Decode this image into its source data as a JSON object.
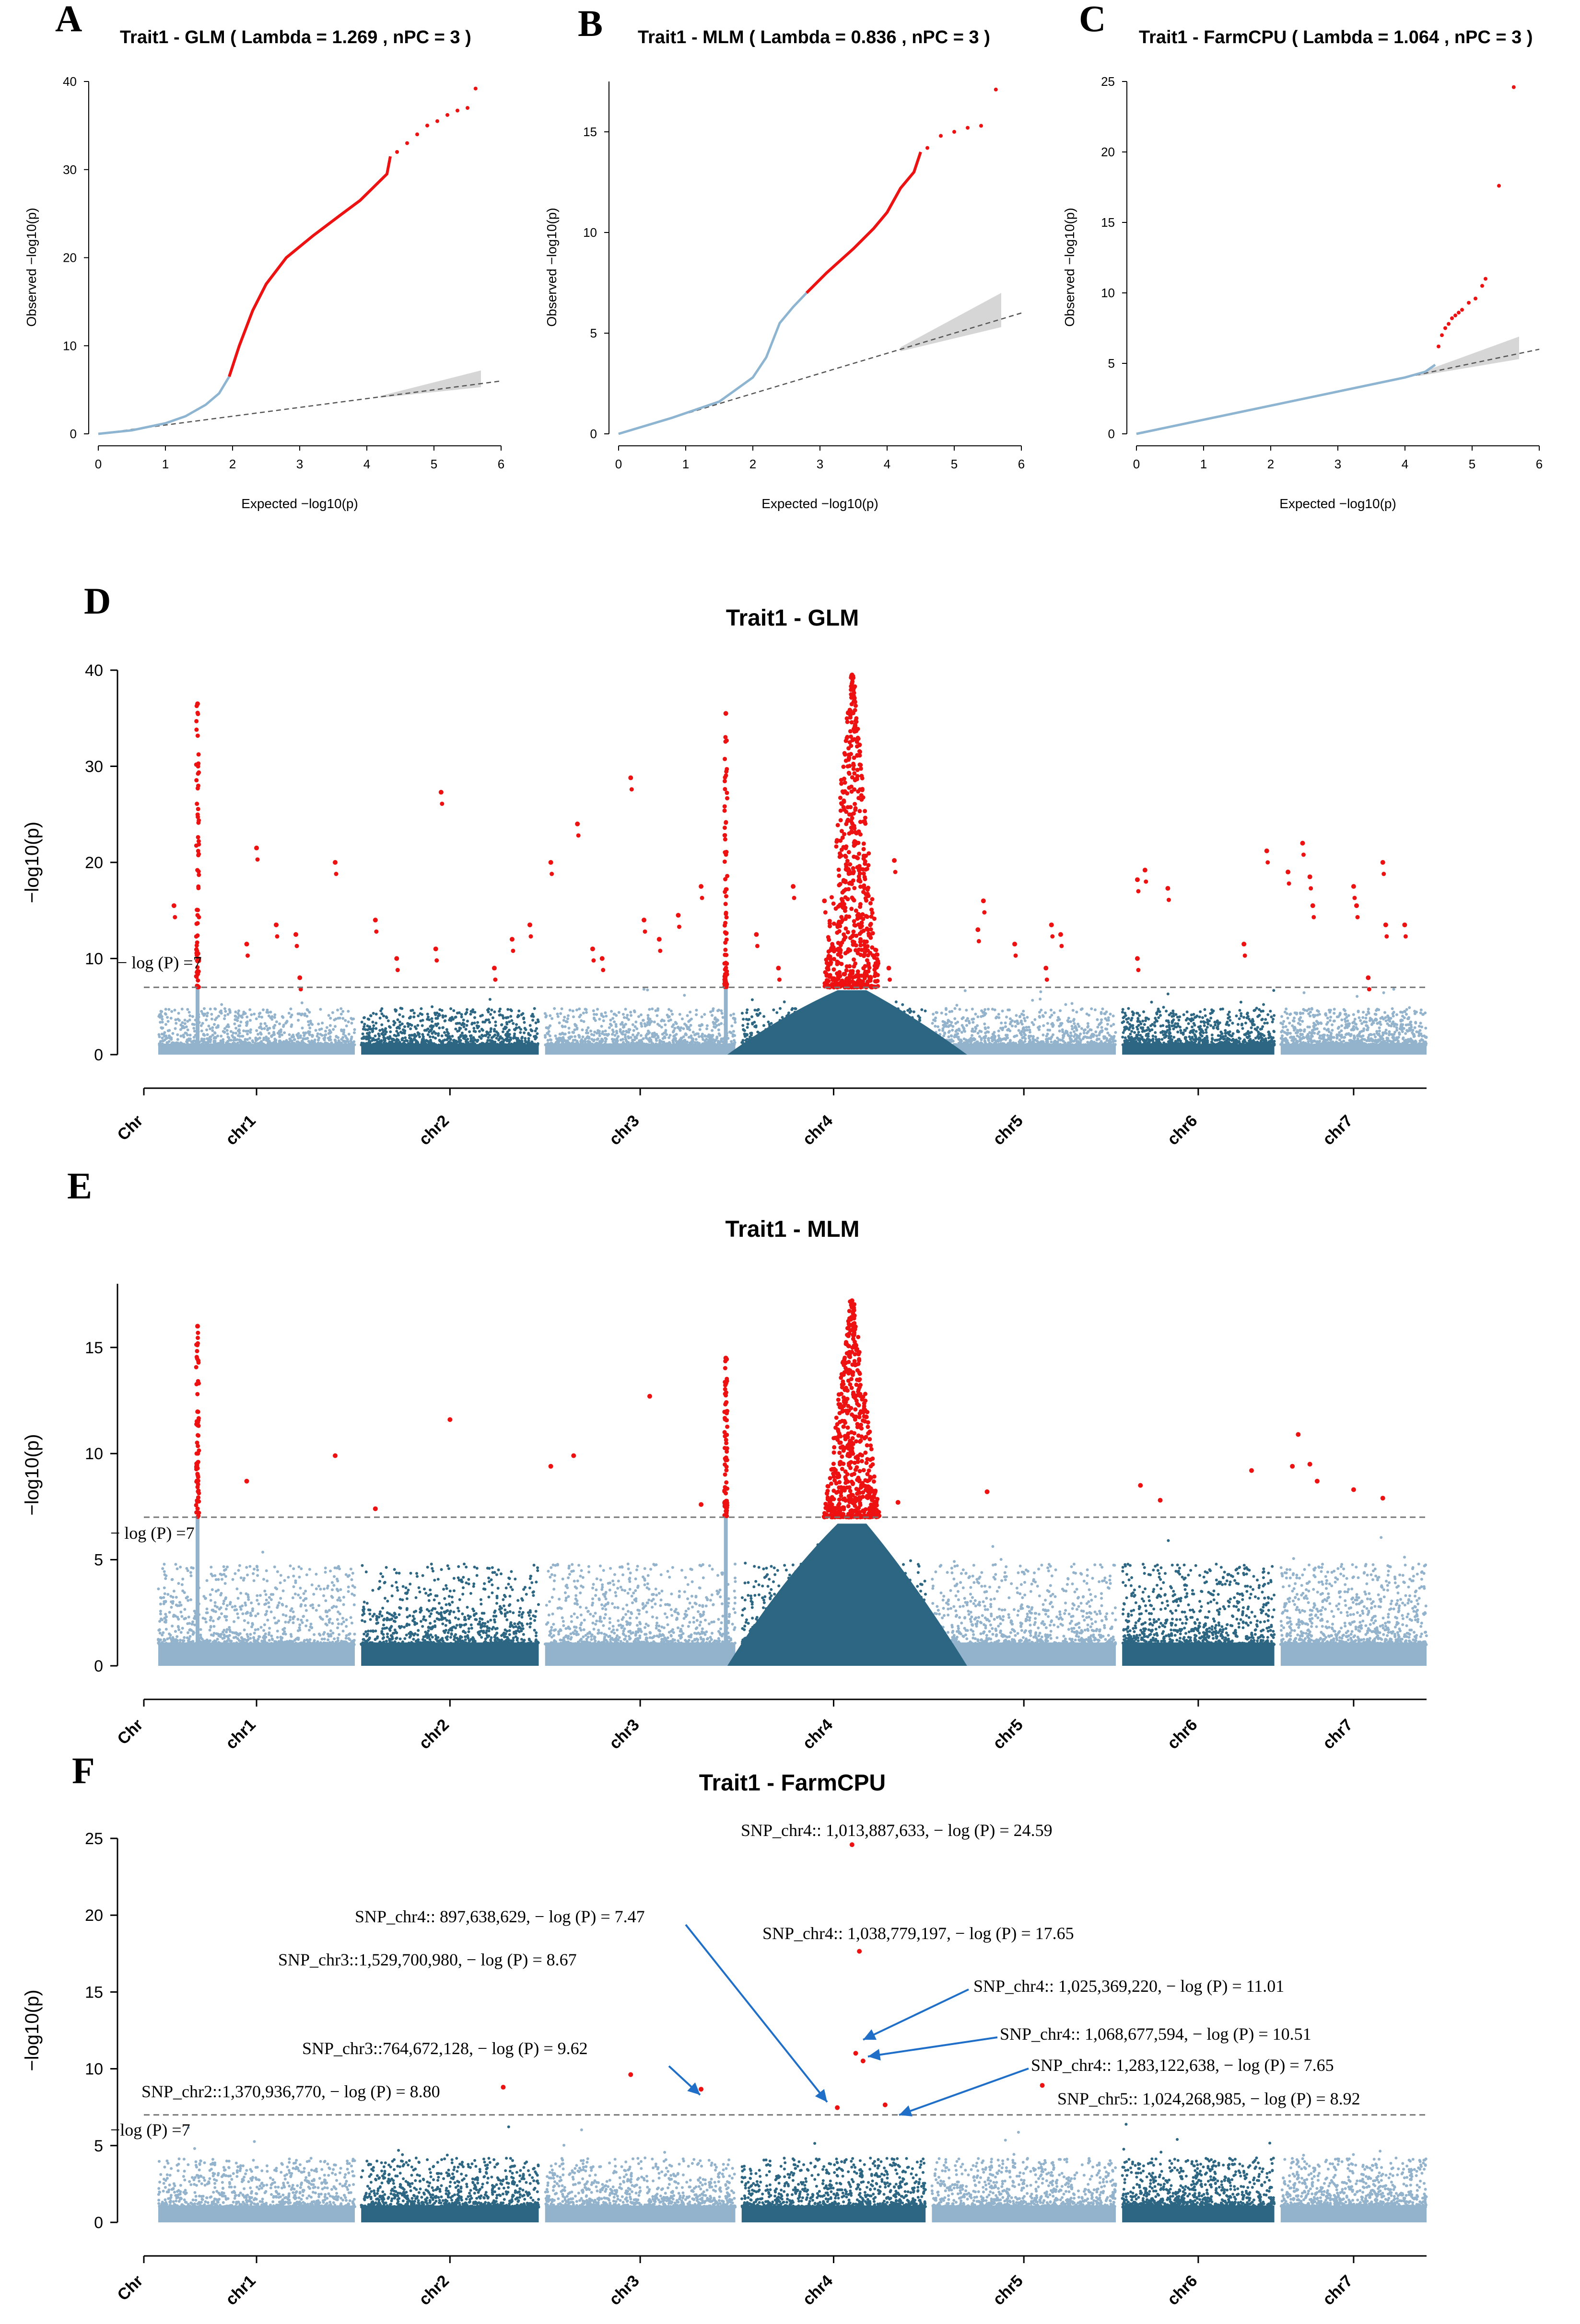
{
  "chart_data": [
    {
      "id": "A",
      "panel_label": "A",
      "type": "scatter",
      "title": "Trait1 - GLM ( Lambda = 1.269 , nPC = 3 )",
      "xlabel": "Expected  −log10(p)",
      "ylabel": "Observed  −log10(p)",
      "xlim": [
        0,
        6
      ],
      "ylim": [
        0,
        40
      ],
      "xticks": [
        "0",
        "1",
        "2",
        "3",
        "4",
        "5",
        "6"
      ],
      "yticks": [
        "0",
        "10",
        "20",
        "30",
        "40"
      ],
      "blue_curve": [
        [
          0,
          0
        ],
        [
          0.5,
          0.4
        ],
        [
          1,
          1.2
        ],
        [
          1.3,
          2
        ],
        [
          1.6,
          3.3
        ],
        [
          1.8,
          4.6
        ],
        [
          1.95,
          6.5
        ]
      ],
      "red_curve": [
        [
          1.95,
          6.5
        ],
        [
          2.1,
          10
        ],
        [
          2.3,
          14
        ],
        [
          2.5,
          17
        ],
        [
          2.8,
          20
        ],
        [
          3.2,
          22.5
        ],
        [
          3.6,
          24.8
        ],
        [
          3.9,
          26.5
        ],
        [
          4.1,
          28
        ],
        [
          4.3,
          29.5
        ],
        [
          4.35,
          31.5
        ]
      ],
      "red_tail": [
        [
          4.45,
          32
        ],
        [
          4.6,
          33
        ],
        [
          4.75,
          34
        ],
        [
          4.9,
          35
        ],
        [
          5.05,
          35.5
        ],
        [
          5.2,
          36.2
        ],
        [
          5.35,
          36.7
        ],
        [
          5.5,
          37
        ],
        [
          5.62,
          39.2
        ]
      ],
      "ci_upper_end": 7.2
    },
    {
      "id": "B",
      "panel_label": "B",
      "type": "scatter",
      "title": "Trait1 - MLM ( Lambda = 0.836 , nPC = 3 )",
      "xlabel": "Expected  −log10(p)",
      "ylabel": "Observed  −log10(p)",
      "xlim": [
        0,
        6
      ],
      "ylim": [
        0,
        17.5
      ],
      "xticks": [
        "0",
        "1",
        "2",
        "3",
        "4",
        "5",
        "6"
      ],
      "yticks": [
        "0",
        "5",
        "10",
        "15"
      ],
      "blue_curve": [
        [
          0,
          0
        ],
        [
          0.8,
          0.8
        ],
        [
          1.5,
          1.6
        ],
        [
          2,
          2.8
        ],
        [
          2.2,
          3.8
        ],
        [
          2.4,
          5.5
        ],
        [
          2.6,
          6.3
        ],
        [
          2.8,
          7
        ]
      ],
      "red_curve": [
        [
          2.8,
          7
        ],
        [
          3.1,
          8
        ],
        [
          3.5,
          9.2
        ],
        [
          3.8,
          10.2
        ],
        [
          4,
          11
        ],
        [
          4.2,
          12.2
        ],
        [
          4.4,
          13
        ],
        [
          4.5,
          14
        ]
      ],
      "red_tail": [
        [
          4.6,
          14.2
        ],
        [
          4.8,
          14.8
        ],
        [
          5,
          15
        ],
        [
          5.2,
          15.2
        ],
        [
          5.4,
          15.3
        ],
        [
          5.62,
          17.1
        ]
      ],
      "ci_upper_end": 7.0
    },
    {
      "id": "C",
      "panel_label": "C",
      "type": "scatter",
      "title": "Trait1 - FarmCPU ( Lambda = 1.064 , nPC = 3 )",
      "xlabel": "Expected  −log10(p)",
      "ylabel": "Observed  −log10(p)",
      "xlim": [
        0,
        6
      ],
      "ylim": [
        0,
        25
      ],
      "xticks": [
        "0",
        "1",
        "2",
        "3",
        "4",
        "5",
        "6"
      ],
      "yticks": [
        "0",
        "5",
        "10",
        "15",
        "20",
        "25"
      ],
      "blue_curve": [
        [
          0,
          0
        ],
        [
          1,
          1
        ],
        [
          2,
          2
        ],
        [
          3,
          3
        ],
        [
          4,
          4
        ],
        [
          4.3,
          4.4
        ],
        [
          4.45,
          4.9
        ]
      ],
      "red_points": [
        [
          4.5,
          6.2
        ],
        [
          4.55,
          7.0
        ],
        [
          4.6,
          7.5
        ],
        [
          4.65,
          7.8
        ],
        [
          4.7,
          8.2
        ],
        [
          4.75,
          8.4
        ],
        [
          4.8,
          8.6
        ],
        [
          4.85,
          8.8
        ],
        [
          4.95,
          9.3
        ],
        [
          5.05,
          9.6
        ],
        [
          5.15,
          10.5
        ],
        [
          5.2,
          11
        ],
        [
          5.4,
          17.6
        ],
        [
          5.62,
          24.6
        ]
      ],
      "ci_upper_end": 6.9
    },
    {
      "id": "D",
      "panel_label": "D",
      "type": "scatter",
      "title": "Trait1 - GLM",
      "xlabel": "",
      "ylabel": "−log10(p)",
      "ylim": [
        0,
        40
      ],
      "yticks": [
        "0",
        "10",
        "20",
        "30",
        "40"
      ],
      "threshold": 7,
      "threshold_label": "− log (P) =7",
      "chromosomes": [
        "chr1",
        "chr2",
        "chr3",
        "chr4",
        "chr5",
        "chr6",
        "chr7"
      ],
      "chr_axis_label": "Chr",
      "peaks": [
        {
          "chr": 1,
          "pos": 0.2,
          "top": 36.5
        },
        {
          "chr": 3,
          "pos": 0.95,
          "top": 35.5
        },
        {
          "chr": 4,
          "pos": 0.6,
          "top": 39.5
        }
      ],
      "significant_points": [
        {
          "chr": 1,
          "pos": 0.5,
          "y": 21.5
        },
        {
          "chr": 1,
          "pos": 0.9,
          "y": 20
        },
        {
          "chr": 1,
          "pos": 0.45,
          "y": 11.5
        },
        {
          "chr": 1,
          "pos": 0.6,
          "y": 13.5
        },
        {
          "chr": 1,
          "pos": 0.7,
          "y": 12.5
        },
        {
          "chr": 1,
          "pos": 0.72,
          "y": 8
        },
        {
          "chr": 1,
          "pos": 0.08,
          "y": 15.5
        },
        {
          "chr": 2,
          "pos": 0.08,
          "y": 14
        },
        {
          "chr": 2,
          "pos": 0.45,
          "y": 27.3
        },
        {
          "chr": 2,
          "pos": 0.42,
          "y": 11
        },
        {
          "chr": 2,
          "pos": 0.2,
          "y": 10
        },
        {
          "chr": 2,
          "pos": 0.85,
          "y": 12
        },
        {
          "chr": 2,
          "pos": 0.95,
          "y": 13.5
        },
        {
          "chr": 2,
          "pos": 0.75,
          "y": 9
        },
        {
          "chr": 3,
          "pos": 0.45,
          "y": 28.8
        },
        {
          "chr": 3,
          "pos": 0.17,
          "y": 24
        },
        {
          "chr": 3,
          "pos": 0.03,
          "y": 20
        },
        {
          "chr": 3,
          "pos": 0.25,
          "y": 11
        },
        {
          "chr": 3,
          "pos": 0.3,
          "y": 10
        },
        {
          "chr": 3,
          "pos": 0.52,
          "y": 14
        },
        {
          "chr": 3,
          "pos": 0.6,
          "y": 12
        },
        {
          "chr": 3,
          "pos": 0.7,
          "y": 14.5
        },
        {
          "chr": 3,
          "pos": 0.82,
          "y": 17.5
        },
        {
          "chr": 4,
          "pos": 0.08,
          "y": 12.5
        },
        {
          "chr": 4,
          "pos": 0.2,
          "y": 9
        },
        {
          "chr": 4,
          "pos": 0.28,
          "y": 17.5
        },
        {
          "chr": 4,
          "pos": 0.45,
          "y": 16
        },
        {
          "chr": 4,
          "pos": 0.83,
          "y": 20.2
        },
        {
          "chr": 4,
          "pos": 0.8,
          "y": 9
        },
        {
          "chr": 5,
          "pos": 0.28,
          "y": 16
        },
        {
          "chr": 5,
          "pos": 0.25,
          "y": 13
        },
        {
          "chr": 5,
          "pos": 0.45,
          "y": 11.5
        },
        {
          "chr": 5,
          "pos": 0.65,
          "y": 13.5
        },
        {
          "chr": 5,
          "pos": 0.7,
          "y": 12.5
        },
        {
          "chr": 5,
          "pos": 0.62,
          "y": 9
        },
        {
          "chr": 6,
          "pos": 0.1,
          "y": 18.2
        },
        {
          "chr": 6,
          "pos": 0.15,
          "y": 19.2
        },
        {
          "chr": 6,
          "pos": 0.3,
          "y": 17.3
        },
        {
          "chr": 6,
          "pos": 0.8,
          "y": 11.5
        },
        {
          "chr": 6,
          "pos": 0.95,
          "y": 21.2
        },
        {
          "chr": 6,
          "pos": 0.1,
          "y": 10
        },
        {
          "chr": 7,
          "pos": 0.05,
          "y": 19
        },
        {
          "chr": 7,
          "pos": 0.15,
          "y": 22
        },
        {
          "chr": 7,
          "pos": 0.2,
          "y": 18.5
        },
        {
          "chr": 7,
          "pos": 0.22,
          "y": 15.5
        },
        {
          "chr": 7,
          "pos": 0.5,
          "y": 17.5
        },
        {
          "chr": 7,
          "pos": 0.52,
          "y": 15.5
        },
        {
          "chr": 7,
          "pos": 0.7,
          "y": 20
        },
        {
          "chr": 7,
          "pos": 0.72,
          "y": 13.5
        },
        {
          "chr": 7,
          "pos": 0.85,
          "y": 13.5
        },
        {
          "chr": 7,
          "pos": 0.6,
          "y": 8
        }
      ]
    },
    {
      "id": "E",
      "panel_label": "E",
      "type": "scatter",
      "title": "Trait1 - MLM",
      "xlabel": "",
      "ylabel": "−log10(p)",
      "ylim": [
        0,
        18
      ],
      "yticks": [
        "0",
        "5",
        "10",
        "15"
      ],
      "threshold": 7,
      "threshold_label": "− log (P) =7",
      "chromosomes": [
        "chr1",
        "chr2",
        "chr3",
        "chr4",
        "chr5",
        "chr6",
        "chr7"
      ],
      "chr_axis_label": "Chr",
      "peaks": [
        {
          "chr": 1,
          "pos": 0.2,
          "top": 16
        },
        {
          "chr": 3,
          "pos": 0.95,
          "top": 14.5
        },
        {
          "chr": 4,
          "pos": 0.6,
          "top": 17.2
        }
      ],
      "significant_points": [
        {
          "chr": 1,
          "pos": 0.45,
          "y": 8.7
        },
        {
          "chr": 1,
          "pos": 0.9,
          "y": 9.9
        },
        {
          "chr": 2,
          "pos": 0.08,
          "y": 7.4
        },
        {
          "chr": 2,
          "pos": 0.5,
          "y": 11.6
        },
        {
          "chr": 3,
          "pos": 0.03,
          "y": 9.4
        },
        {
          "chr": 3,
          "pos": 0.15,
          "y": 9.9
        },
        {
          "chr": 3,
          "pos": 0.55,
          "y": 12.7
        },
        {
          "chr": 3,
          "pos": 0.82,
          "y": 7.6
        },
        {
          "chr": 4,
          "pos": 0.85,
          "y": 7.7
        },
        {
          "chr": 5,
          "pos": 0.3,
          "y": 8.2
        },
        {
          "chr": 6,
          "pos": 0.12,
          "y": 8.5
        },
        {
          "chr": 6,
          "pos": 0.25,
          "y": 7.8
        },
        {
          "chr": 6,
          "pos": 0.85,
          "y": 9.2
        },
        {
          "chr": 7,
          "pos": 0.08,
          "y": 9.4
        },
        {
          "chr": 7,
          "pos": 0.12,
          "y": 10.9
        },
        {
          "chr": 7,
          "pos": 0.2,
          "y": 9.5
        },
        {
          "chr": 7,
          "pos": 0.25,
          "y": 8.7
        },
        {
          "chr": 7,
          "pos": 0.5,
          "y": 8.3
        },
        {
          "chr": 7,
          "pos": 0.7,
          "y": 7.9
        }
      ]
    },
    {
      "id": "F",
      "panel_label": "F",
      "type": "scatter",
      "title": "Trait1 - FarmCPU",
      "xlabel": "",
      "ylabel": "−log10(p)",
      "ylim": [
        0,
        25
      ],
      "yticks": [
        "0",
        "5",
        "10",
        "15",
        "20",
        "25"
      ],
      "threshold": 7,
      "threshold_label": "−log (P) =7",
      "chromosomes": [
        "chr1",
        "chr2",
        "chr3",
        "chr4",
        "chr5",
        "chr6",
        "chr7"
      ],
      "chr_axis_label": "Chr",
      "significant_points": [
        {
          "chr": 2,
          "pos": 0.8,
          "y": 8.8,
          "label": "SNP_chr2::1,370,936,770,  − log (P) = 8.80"
        },
        {
          "chr": 3,
          "pos": 0.45,
          "y": 9.62,
          "label": "SNP_chr3::764,672,128,  − log (P) = 9.62"
        },
        {
          "chr": 3,
          "pos": 0.82,
          "y": 8.67,
          "label": "SNP_chr3::1,529,700,980,  − log (P) = 8.67"
        },
        {
          "chr": 4,
          "pos": 0.52,
          "y": 7.47,
          "label": "SNP_chr4:: 897,638,629,  − log (P) = 7.47"
        },
        {
          "chr": 4,
          "pos": 0.6,
          "y": 24.59,
          "label": "SNP_chr4:: 1,013,887,633,  − log (P) = 24.59"
        },
        {
          "chr": 4,
          "pos": 0.62,
          "y": 11.01,
          "label": "SNP_chr4:: 1,025,369,220,  − log (P) = 11.01"
        },
        {
          "chr": 4,
          "pos": 0.64,
          "y": 17.65,
          "label": "SNP_chr4:: 1,038,779,197,  − log (P) = 17.65"
        },
        {
          "chr": 4,
          "pos": 0.66,
          "y": 10.51,
          "label": "SNP_chr4:: 1,068,677,594,  − log (P) = 10.51"
        },
        {
          "chr": 4,
          "pos": 0.78,
          "y": 7.65,
          "label": "SNP_chr4:: 1,283,122,638,  − log (P) = 7.65"
        },
        {
          "chr": 5,
          "pos": 0.6,
          "y": 8.92,
          "label": "SNP_chr5:: 1,024,268,985,  − log (P) = 8.92"
        }
      ]
    }
  ]
}
